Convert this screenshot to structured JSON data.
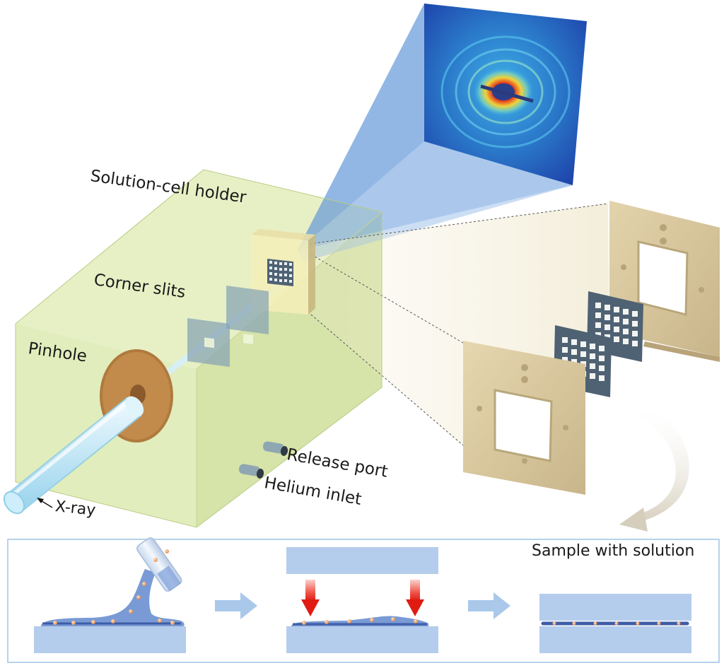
{
  "labels": {
    "solution_cell_holder": "Solution-cell  holder",
    "corner_slits": "Corner slits",
    "pinhole": "Pinhole",
    "release_port": "Release port",
    "helium_inlet": "Helium inlet",
    "x_ray": "X-ray",
    "sample_with_solution": "Sample with solution"
  },
  "colors": {
    "chamber": "#d9e8a8",
    "beam": "#bfe6f5",
    "pinhole_disk": "#b07a3e",
    "frame": "#d8c79e",
    "membrane": "#4f6273",
    "substrate": "#b5cdec",
    "press_arrow": "#e8231e",
    "flow_arrow": "#a9c8ea",
    "curved_arrow": "#ddd6c8"
  }
}
